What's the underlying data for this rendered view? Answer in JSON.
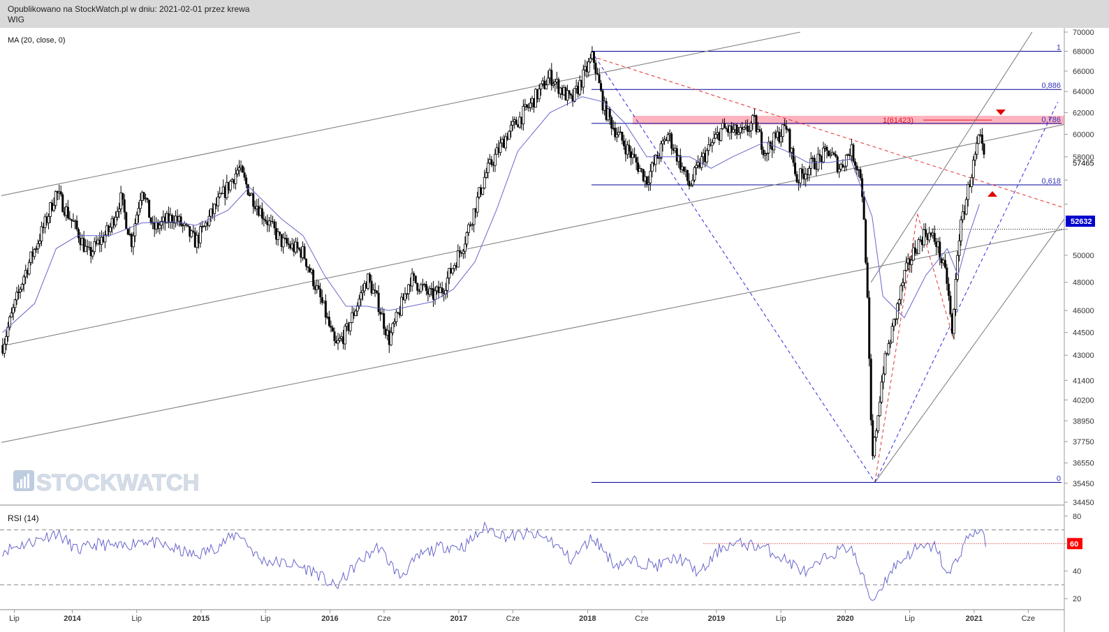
{
  "header": {
    "published": "Opublikowano na StockWatch.pl w dniu: 2021-02-01 przez krewa",
    "symbol": "WIG"
  },
  "watermark": "STOCKWATCH",
  "colors": {
    "candle": "#000000",
    "ma": "#6666cc",
    "rsi": "#6666cc",
    "fib": "#000099",
    "resistance_zone": "#ff9aa8",
    "red_dashed": "#e03030",
    "blue_dashed": "#2a2ad8",
    "channel": "#777777",
    "price_badge": "#0000cc",
    "rsi_badge": "#ff0000"
  },
  "chart_data": [
    {
      "type": "candlestick",
      "title": "",
      "indicator_label": "MA (20, close, 0)",
      "ylim": [
        34450,
        70000
      ],
      "y_scale": "log",
      "y_ticks": [
        70000,
        68000,
        66000,
        64000,
        62000,
        60000,
        58000,
        56000,
        54000,
        52000,
        50000,
        48000,
        46000,
        44500,
        43000,
        41400,
        40200,
        38950,
        37750,
        36550,
        35450,
        34450
      ],
      "y_tick_labels": [
        "70000",
        "68000",
        "66000",
        "64000",
        "62000",
        "60000",
        "58000",
        "",
        "",
        "",
        "50000",
        "48000",
        "46000",
        "44500",
        "43000",
        "41400",
        "40200",
        "38950",
        "37750",
        "36550",
        "35450",
        "34450"
      ],
      "x_ticks": [
        "Lip",
        "2014",
        "Lip",
        "2015",
        "Lip",
        "2016",
        "Cze",
        "2017",
        "Cze",
        "2018",
        "Cze",
        "2019",
        "Lip",
        "2020",
        "Lip",
        "2021",
        "Cze"
      ],
      "current_price": "52632",
      "marked_price": "57465",
      "fibonacci": [
        {
          "label": "1",
          "value": 68000
        },
        {
          "label": "0,886",
          "value": 64200
        },
        {
          "label": "0,786",
          "value": 61000
        },
        {
          "label": "0,618",
          "value": 55600
        },
        {
          "label": "0",
          "value": 35500
        }
      ],
      "resistance_zone": {
        "low": 60900,
        "high": 61700,
        "label": "1(61423)"
      },
      "series": [
        {
          "name": "WIG",
          "points": [
            [
              "2013-06",
              43600
            ],
            [
              "2013-08",
              48500
            ],
            [
              "2013-10",
              52500
            ],
            [
              "2013-11",
              55000
            ],
            [
              "2014-01",
              51800
            ],
            [
              "2014-02",
              50000
            ],
            [
              "2014-04",
              52000
            ],
            [
              "2014-05",
              54500
            ],
            [
              "2014-06",
              51000
            ],
            [
              "2014-07",
              55500
            ],
            [
              "2014-08",
              52000
            ],
            [
              "2014-10",
              53000
            ],
            [
              "2014-12",
              51000
            ],
            [
              "2015-02",
              54000
            ],
            [
              "2015-04",
              57000
            ],
            [
              "2015-05",
              55000
            ],
            [
              "2015-06",
              53500
            ],
            [
              "2015-08",
              51000
            ],
            [
              "2015-10",
              50200
            ],
            [
              "2015-12",
              46000
            ],
            [
              "2016-01",
              43500
            ],
            [
              "2016-02",
              44500
            ],
            [
              "2016-04",
              48300
            ],
            [
              "2016-05",
              46500
            ],
            [
              "2016-06",
              44000
            ],
            [
              "2016-07",
              46000
            ],
            [
              "2016-08",
              48300
            ],
            [
              "2016-10",
              47000
            ],
            [
              "2016-11",
              47500
            ],
            [
              "2017-01",
              51000
            ],
            [
              "2017-03",
              56500
            ],
            [
              "2017-05",
              60000
            ],
            [
              "2017-07",
              62500
            ],
            [
              "2017-09",
              65500
            ],
            [
              "2017-11",
              63000
            ],
            [
              "2018-01",
              67500
            ],
            [
              "2018-02",
              62500
            ],
            [
              "2018-03",
              60500
            ],
            [
              "2018-05",
              57500
            ],
            [
              "2018-06",
              56000
            ],
            [
              "2018-08",
              60000
            ],
            [
              "2018-10",
              55500
            ],
            [
              "2018-11",
              57500
            ],
            [
              "2019-01",
              60500
            ],
            [
              "2019-03",
              60000
            ],
            [
              "2019-04",
              61200
            ],
            [
              "2019-05",
              58500
            ],
            [
              "2019-07",
              60700
            ],
            [
              "2019-08",
              56000
            ],
            [
              "2019-09",
              57000
            ],
            [
              "2019-11",
              58500
            ],
            [
              "2019-12",
              57000
            ],
            [
              "2020-01",
              58700
            ],
            [
              "2020-02",
              56200
            ],
            [
              "2020-02",
              48800
            ],
            [
              "2020-03",
              36500
            ],
            [
              "2020-04",
              42000
            ],
            [
              "2020-05",
              45000
            ],
            [
              "2020-06",
              48500
            ],
            [
              "2020-07",
              50500
            ],
            [
              "2020-08",
              51800
            ],
            [
              "2020-09",
              51000
            ],
            [
              "2020-10",
              48000
            ],
            [
              "2020-10",
              44100
            ],
            [
              "2020-11",
              51000
            ],
            [
              "2020-12",
              55500
            ],
            [
              "2021-01",
              59700
            ],
            [
              "2021-01",
              57465
            ]
          ]
        },
        {
          "name": "MA (20, close, 0)",
          "points": [
            [
              "2013-06",
              44500
            ],
            [
              "2013-09",
              46500
            ],
            [
              "2013-11",
              50500
            ],
            [
              "2014-01",
              51500
            ],
            [
              "2014-04",
              51500
            ],
            [
              "2014-07",
              52500
            ],
            [
              "2014-10",
              52600
            ],
            [
              "2014-12",
              52300
            ],
            [
              "2015-03",
              53500
            ],
            [
              "2015-05",
              55400
            ],
            [
              "2015-08",
              52800
            ],
            [
              "2015-10",
              51500
            ],
            [
              "2015-12",
              48500
            ],
            [
              "2016-02",
              46300
            ],
            [
              "2016-04",
              46300
            ],
            [
              "2016-06",
              46000
            ],
            [
              "2016-08",
              46300
            ],
            [
              "2016-10",
              46600
            ],
            [
              "2016-12",
              47500
            ],
            [
              "2017-02",
              49500
            ],
            [
              "2017-04",
              53500
            ],
            [
              "2017-06",
              58500
            ],
            [
              "2017-09",
              62000
            ],
            [
              "2017-12",
              63500
            ],
            [
              "2018-02",
              63000
            ],
            [
              "2018-04",
              61000
            ],
            [
              "2018-06",
              58000
            ],
            [
              "2018-08",
              58000
            ],
            [
              "2018-10",
              58000
            ],
            [
              "2018-12",
              57000
            ],
            [
              "2019-02",
              58000
            ],
            [
              "2019-05",
              59300
            ],
            [
              "2019-07",
              58500
            ],
            [
              "2019-09",
              57500
            ],
            [
              "2019-11",
              57500
            ],
            [
              "2020-01",
              57800
            ],
            [
              "2020-03",
              53000
            ],
            [
              "2020-04",
              47000
            ],
            [
              "2020-06",
              45500
            ],
            [
              "2020-08",
              48500
            ],
            [
              "2020-10",
              50500
            ],
            [
              "2020-11",
              48500
            ],
            [
              "2020-12",
              51500
            ],
            [
              "2021-01",
              54000
            ]
          ]
        }
      ]
    },
    {
      "type": "line",
      "title": "RSI (14)",
      "ylim": [
        15,
        85
      ],
      "y_ticks": [
        80,
        60,
        40,
        20
      ],
      "y_tick_labels": [
        "80",
        "",
        "40",
        "20"
      ],
      "reference_lines": [
        70,
        30
      ],
      "marked_level": "60",
      "series": [
        {
          "name": "RSI (14)",
          "points": [
            [
              "2013-06",
              55
            ],
            [
              "2013-09",
              62
            ],
            [
              "2013-11",
              68
            ],
            [
              "2014-01",
              55
            ],
            [
              "2014-03",
              60
            ],
            [
              "2014-05",
              57
            ],
            [
              "2014-07",
              63
            ],
            [
              "2014-10",
              56
            ],
            [
              "2014-12",
              51
            ],
            [
              "2015-02",
              58
            ],
            [
              "2015-04",
              68
            ],
            [
              "2015-06",
              48
            ],
            [
              "2015-09",
              45
            ],
            [
              "2015-11",
              40
            ],
            [
              "2016-01",
              28
            ],
            [
              "2016-03",
              45
            ],
            [
              "2016-05",
              58
            ],
            [
              "2016-07",
              36
            ],
            [
              "2016-09",
              52
            ],
            [
              "2016-11",
              58
            ],
            [
              "2017-01",
              58
            ],
            [
              "2017-03",
              72
            ],
            [
              "2017-05",
              65
            ],
            [
              "2017-07",
              67
            ],
            [
              "2017-09",
              63
            ],
            [
              "2017-11",
              48
            ],
            [
              "2018-01",
              65
            ],
            [
              "2018-03",
              45
            ],
            [
              "2018-05",
              47
            ],
            [
              "2018-07",
              44
            ],
            [
              "2018-09",
              50
            ],
            [
              "2018-11",
              38
            ],
            [
              "2019-01",
              58
            ],
            [
              "2019-03",
              60
            ],
            [
              "2019-05",
              57
            ],
            [
              "2019-07",
              48
            ],
            [
              "2019-09",
              38
            ],
            [
              "2019-11",
              52
            ],
            [
              "2020-01",
              58
            ],
            [
              "2020-03",
              18
            ],
            [
              "2020-05",
              43
            ],
            [
              "2020-07",
              56
            ],
            [
              "2020-09",
              58
            ],
            [
              "2020-10",
              35
            ],
            [
              "2020-12",
              66
            ],
            [
              "2021-01",
              70
            ],
            [
              "2021-01",
              62
            ]
          ]
        }
      ]
    }
  ]
}
